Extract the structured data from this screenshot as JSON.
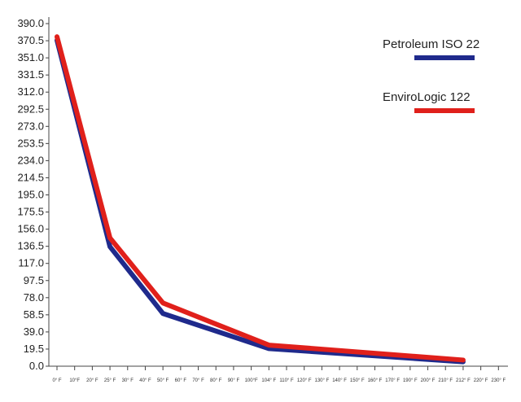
{
  "chart_data": {
    "type": "line",
    "title": "",
    "xlabel": "",
    "ylabel": "",
    "ylim": [
      0,
      390
    ],
    "grid": false,
    "legend_position": "top-right",
    "y_ticks": [
      "390.0",
      "370.5",
      "351.0",
      "331.5",
      "312.0",
      "292.5",
      "273.0",
      "253.5",
      "234.0",
      "214.5",
      "195.0",
      "175.5",
      "156.0",
      "136.5",
      "117.0",
      "97.5",
      "78.0",
      "58.5",
      "39.0",
      "19.5",
      "0.0"
    ],
    "x_ticks": [
      "0° F",
      "10°F",
      "20° F",
      "25° F",
      "30° F",
      "40° F",
      "50° F",
      "60° F",
      "70° F",
      "80° F",
      "90° F",
      "100°F",
      "104° F",
      "110° F",
      "120° F",
      "130° F",
      "140° F",
      "150° F",
      "160° F",
      "170° F",
      "190° F",
      "200° F",
      "210° F",
      "212° F",
      "220° F",
      "230° F"
    ],
    "series": [
      {
        "name": "Petroleum ISO 22",
        "color": "#1f2a8c",
        "points": [
          {
            "x": "0° F",
            "y": 371
          },
          {
            "x": "25° F",
            "y": 136
          },
          {
            "x": "50° F",
            "y": 60
          },
          {
            "x": "104° F",
            "y": 20
          },
          {
            "x": "212° F",
            "y": 5
          }
        ]
      },
      {
        "name": "EnviroLogic 122",
        "color": "#e0201b",
        "points": [
          {
            "x": "0° F",
            "y": 375
          },
          {
            "x": "25° F",
            "y": 146
          },
          {
            "x": "50° F",
            "y": 72
          },
          {
            "x": "104° F",
            "y": 24
          },
          {
            "x": "212° F",
            "y": 7
          }
        ]
      }
    ]
  }
}
